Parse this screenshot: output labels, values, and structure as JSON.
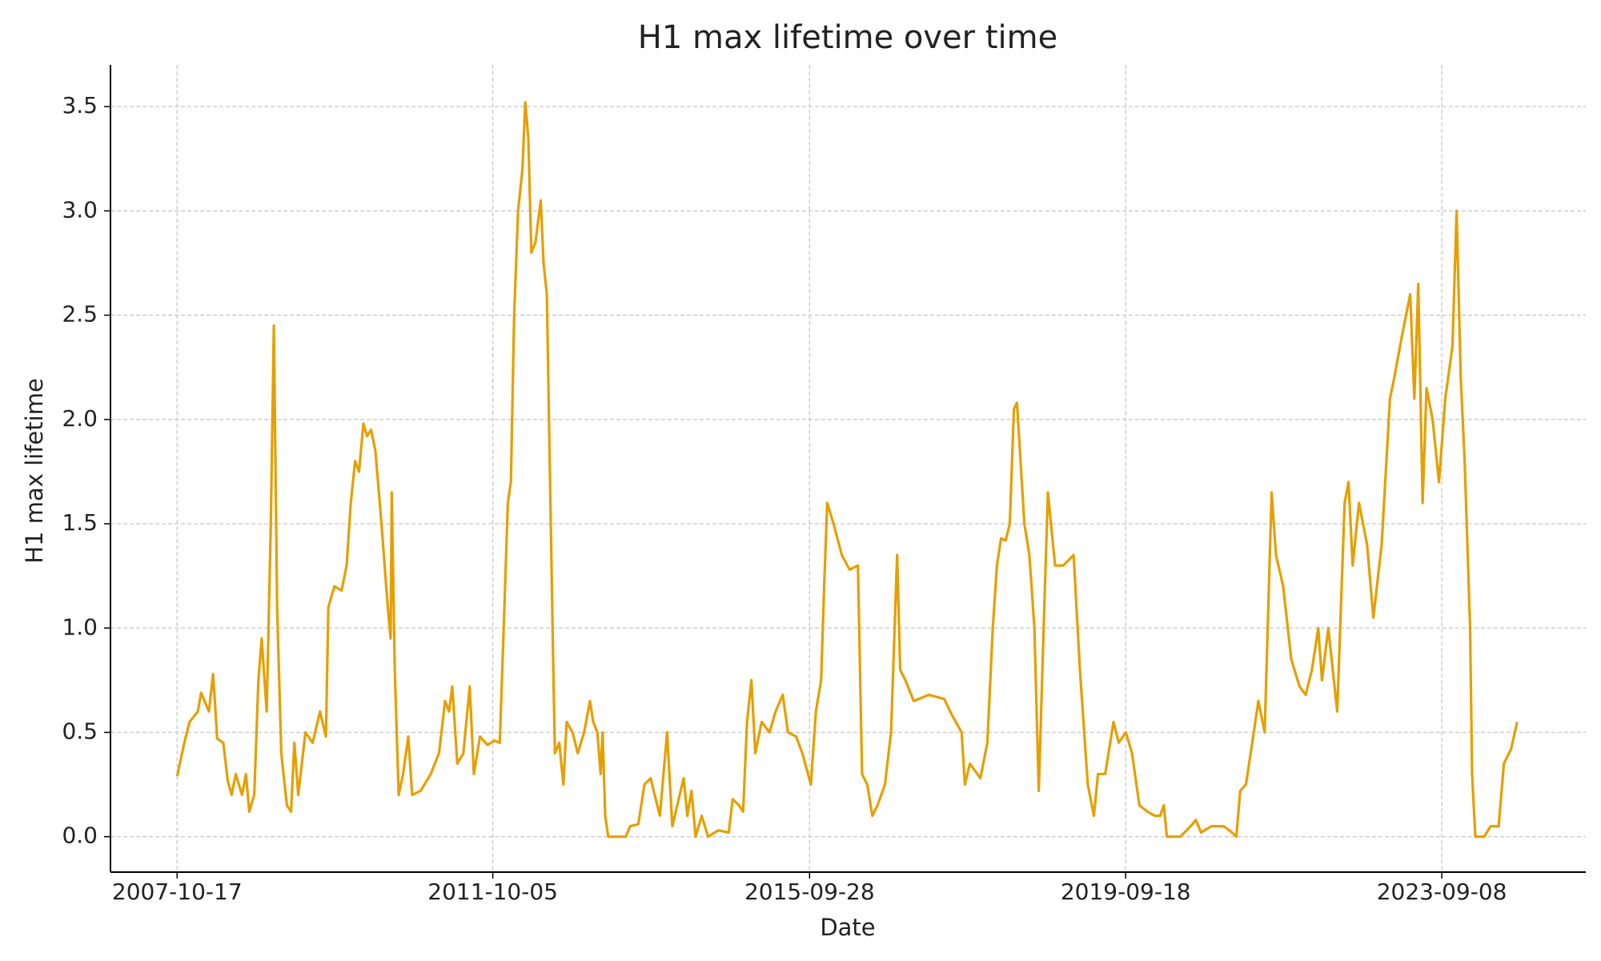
{
  "chart_data": {
    "type": "line",
    "title": "H1 max lifetime over time",
    "xlabel": "Date",
    "ylabel": "H1 max lifetime",
    "xlim": [
      "2006-12-15",
      "2025-06-30"
    ],
    "xticks": [
      "2007-10-17",
      "2011-10-05",
      "2015-09-28",
      "2019-09-18",
      "2023-09-08"
    ],
    "ylim": [
      -0.17,
      3.7
    ],
    "yticks": [
      {
        "value": 0,
        "label": "0.0"
      },
      0.5,
      {
        "value": 1,
        "label": "1.0"
      },
      1.5,
      {
        "value": 2,
        "label": "2.0"
      },
      2.5,
      {
        "value": 3,
        "label": "3.0"
      },
      3.5
    ],
    "grid": true,
    "x": [
      "2007-10-17",
      "2007-11-19",
      "2007-12-13",
      "2008-01-20",
      "2008-02-04",
      "2008-03-11",
      "2008-03-30",
      "2008-04-18",
      "2008-05-16",
      "2008-06-05",
      "2008-06-23",
      "2008-07-12",
      "2008-08-10",
      "2008-08-28",
      "2008-09-12",
      "2008-10-05",
      "2008-10-24",
      "2008-11-08",
      "2008-12-01",
      "2008-12-20",
      "2009-01-03",
      "2009-01-18",
      "2009-02-06",
      "2009-03-04",
      "2009-03-23",
      "2009-04-07",
      "2009-04-25",
      "2009-05-28",
      "2009-06-30",
      "2009-08-03",
      "2009-08-30",
      "2009-09-10",
      "2009-10-08",
      "2009-11-10",
      "2009-12-03",
      "2009-12-22",
      "2010-01-11",
      "2010-01-29",
      "2010-02-18",
      "2010-03-07",
      "2010-03-25",
      "2010-04-14",
      "2010-05-12",
      "2010-06-10",
      "2010-06-23",
      "2010-06-28",
      "2010-07-12",
      "2010-07-30",
      "2010-08-19",
      "2010-09-12",
      "2010-09-30",
      "2010-11-08",
      "2010-12-24",
      "2011-01-31",
      "2011-02-28",
      "2011-03-18",
      "2011-04-02",
      "2011-04-25",
      "2011-05-23",
      "2011-06-21",
      "2011-07-10",
      "2011-08-07",
      "2011-09-10",
      "2011-10-13",
      "2011-11-06",
      "2011-11-24",
      "2011-12-13",
      "2011-12-27",
      "2012-01-11",
      "2012-01-29",
      "2012-02-18",
      "2012-03-02",
      "2012-03-16",
      "2012-03-30",
      "2012-04-18",
      "2012-05-12",
      "2012-05-25",
      "2012-06-09",
      "2012-06-23",
      "2012-07-07",
      "2012-07-16",
      "2012-08-05",
      "2012-08-24",
      "2012-09-08",
      "2012-10-05",
      "2012-10-29",
      "2012-11-27",
      "2012-12-24",
      "2013-01-08",
      "2013-01-27",
      "2013-02-11",
      "2013-02-20",
      "2013-03-04",
      "2013-03-18",
      "2013-06-07",
      "2013-06-26",
      "2013-08-03",
      "2013-08-31",
      "2013-09-29",
      "2013-10-17",
      "2013-11-10",
      "2013-12-13",
      "2014-01-06",
      "2014-02-09",
      "2014-02-27",
      "2014-03-16",
      "2014-04-04",
      "2014-04-23",
      "2014-05-21",
      "2014-06-19",
      "2014-08-05",
      "2014-09-22",
      "2014-10-10",
      "2014-11-08",
      "2014-11-27",
      "2014-12-15",
      "2015-01-04",
      "2015-01-22",
      "2015-02-20",
      "2015-03-28",
      "2015-04-25",
      "2015-05-28",
      "2015-06-21",
      "2015-07-28",
      "2015-08-26",
      "2015-10-04",
      "2015-10-27",
      "2015-11-20",
      "2015-12-04",
      "2015-12-18",
      "2016-01-16",
      "2016-02-23",
      "2016-03-30",
      "2016-05-07",
      "2016-05-26",
      "2016-06-19",
      "2016-07-12",
      "2016-08-05",
      "2016-09-08",
      "2016-10-06",
      "2016-11-03",
      "2016-11-17",
      "2016-12-11",
      "2017-01-18",
      "2017-03-28",
      "2017-06-07",
      "2017-07-14",
      "2017-08-26",
      "2017-09-10",
      "2017-10-03",
      "2017-11-20",
      "2017-12-22",
      "2018-01-16",
      "2018-02-04",
      "2018-02-23",
      "2018-03-16",
      "2018-04-04",
      "2018-04-23",
      "2018-05-07",
      "2018-06-10",
      "2018-07-03",
      "2018-07-26",
      "2018-08-15",
      "2018-09-08",
      "2018-09-26",
      "2018-10-29",
      "2018-12-06",
      "2019-01-22",
      "2019-02-20",
      "2019-03-28",
      "2019-04-25",
      "2019-05-14",
      "2019-06-16",
      "2019-07-24",
      "2019-08-17",
      "2019-09-19",
      "2019-10-17",
      "2019-11-20",
      "2019-12-27",
      "2020-01-30",
      "2020-02-23",
      "2020-03-11",
      "2020-03-25",
      "2020-05-26",
      "2020-07-12",
      "2020-08-05",
      "2020-08-29",
      "2020-10-15",
      "2020-12-11",
      "2021-01-18",
      "2021-02-07",
      "2021-02-25",
      "2021-03-23",
      "2021-04-21",
      "2021-05-19",
      "2021-06-17",
      "2021-07-19",
      "2021-08-08",
      "2021-09-10",
      "2021-10-17",
      "2021-11-24",
      "2021-12-22",
      "2022-01-20",
      "2022-02-18",
      "2022-03-07",
      "2022-04-05",
      "2022-05-16",
      "2022-06-19",
      "2022-07-07",
      "2022-07-26",
      "2022-08-24",
      "2022-09-30",
      "2022-10-29",
      "2022-12-06",
      "2023-01-13",
      "2023-02-02",
      "2023-03-09",
      "2023-04-16",
      "2023-05-05",
      "2023-05-23",
      "2023-06-12",
      "2023-06-30",
      "2023-07-28",
      "2023-08-26",
      "2023-09-24",
      "2023-10-27",
      "2023-11-15",
      "2023-12-04",
      "2023-12-22",
      "2024-01-16",
      "2024-01-25",
      "2024-02-09",
      "2024-03-21",
      "2024-04-19",
      "2024-05-26",
      "2024-06-19",
      "2024-07-22",
      "2024-08-19"
    ],
    "series": [
      {
        "name": "H1 max lifetime",
        "color": "#e69f00",
        "values": [
          0.29,
          0.45,
          0.55,
          0.6,
          0.69,
          0.6,
          0.78,
          0.47,
          0.45,
          0.27,
          0.2,
          0.3,
          0.2,
          0.3,
          0.12,
          0.2,
          0.75,
          0.95,
          0.6,
          1.5,
          2.45,
          1.1,
          0.4,
          0.15,
          0.12,
          0.45,
          0.2,
          0.5,
          0.45,
          0.6,
          0.48,
          1.1,
          1.2,
          1.18,
          1.3,
          1.6,
          1.8,
          1.75,
          1.98,
          1.92,
          1.95,
          1.85,
          1.5,
          1.1,
          0.95,
          1.65,
          0.8,
          0.2,
          0.3,
          0.48,
          0.2,
          0.22,
          0.3,
          0.4,
          0.65,
          0.6,
          0.72,
          0.35,
          0.4,
          0.72,
          0.3,
          0.48,
          0.44,
          0.46,
          0.45,
          1.0,
          1.6,
          1.7,
          2.5,
          3.0,
          3.2,
          3.52,
          3.35,
          2.8,
          2.85,
          3.05,
          2.75,
          2.6,
          1.75,
          0.9,
          0.4,
          0.45,
          0.25,
          0.55,
          0.5,
          0.4,
          0.5,
          0.65,
          0.55,
          0.5,
          0.3,
          0.5,
          0.1,
          0.0,
          0.0,
          0.05,
          0.06,
          0.25,
          0.28,
          0.2,
          0.1,
          0.5,
          0.05,
          0.2,
          0.28,
          0.1,
          0.22,
          0.0,
          0.1,
          0.0,
          0.03,
          0.02,
          0.18,
          0.15,
          0.12,
          0.55,
          0.75,
          0.4,
          0.55,
          0.5,
          0.6,
          0.68,
          0.5,
          0.48,
          0.4,
          0.25,
          0.6,
          0.75,
          1.2,
          1.6,
          1.5,
          1.35,
          1.28,
          1.3,
          0.3,
          0.25,
          0.1,
          0.15,
          0.25,
          0.5,
          1.35,
          0.8,
          0.75,
          0.65,
          0.68,
          0.66,
          0.58,
          0.5,
          0.25,
          0.35,
          0.28,
          0.45,
          1.0,
          1.3,
          1.43,
          1.42,
          1.5,
          2.05,
          2.08,
          1.5,
          1.35,
          1.0,
          0.22,
          1.05,
          1.65,
          1.3,
          1.3,
          1.35,
          0.8,
          0.25,
          0.1,
          0.3,
          0.3,
          0.55,
          0.45,
          0.5,
          0.4,
          0.15,
          0.12,
          0.1,
          0.1,
          0.15,
          0.0,
          0.0,
          0.05,
          0.08,
          0.02,
          0.05,
          0.05,
          0.02,
          0.0,
          0.22,
          0.25,
          0.45,
          0.65,
          0.5,
          1.65,
          1.35,
          1.2,
          0.85,
          0.72,
          0.68,
          0.8,
          1.0,
          0.75,
          1.0,
          0.6,
          1.6,
          1.7,
          1.3,
          1.6,
          1.4,
          1.05,
          1.4,
          2.1,
          2.2,
          2.4,
          2.6,
          2.1,
          2.65,
          1.6,
          2.15,
          2.0,
          1.7,
          2.1,
          2.35,
          3.0,
          2.2,
          1.8,
          1.0,
          0.3,
          0.0,
          0.0,
          0.05,
          0.05,
          0.35,
          0.42,
          0.55
        ]
      }
    ]
  }
}
